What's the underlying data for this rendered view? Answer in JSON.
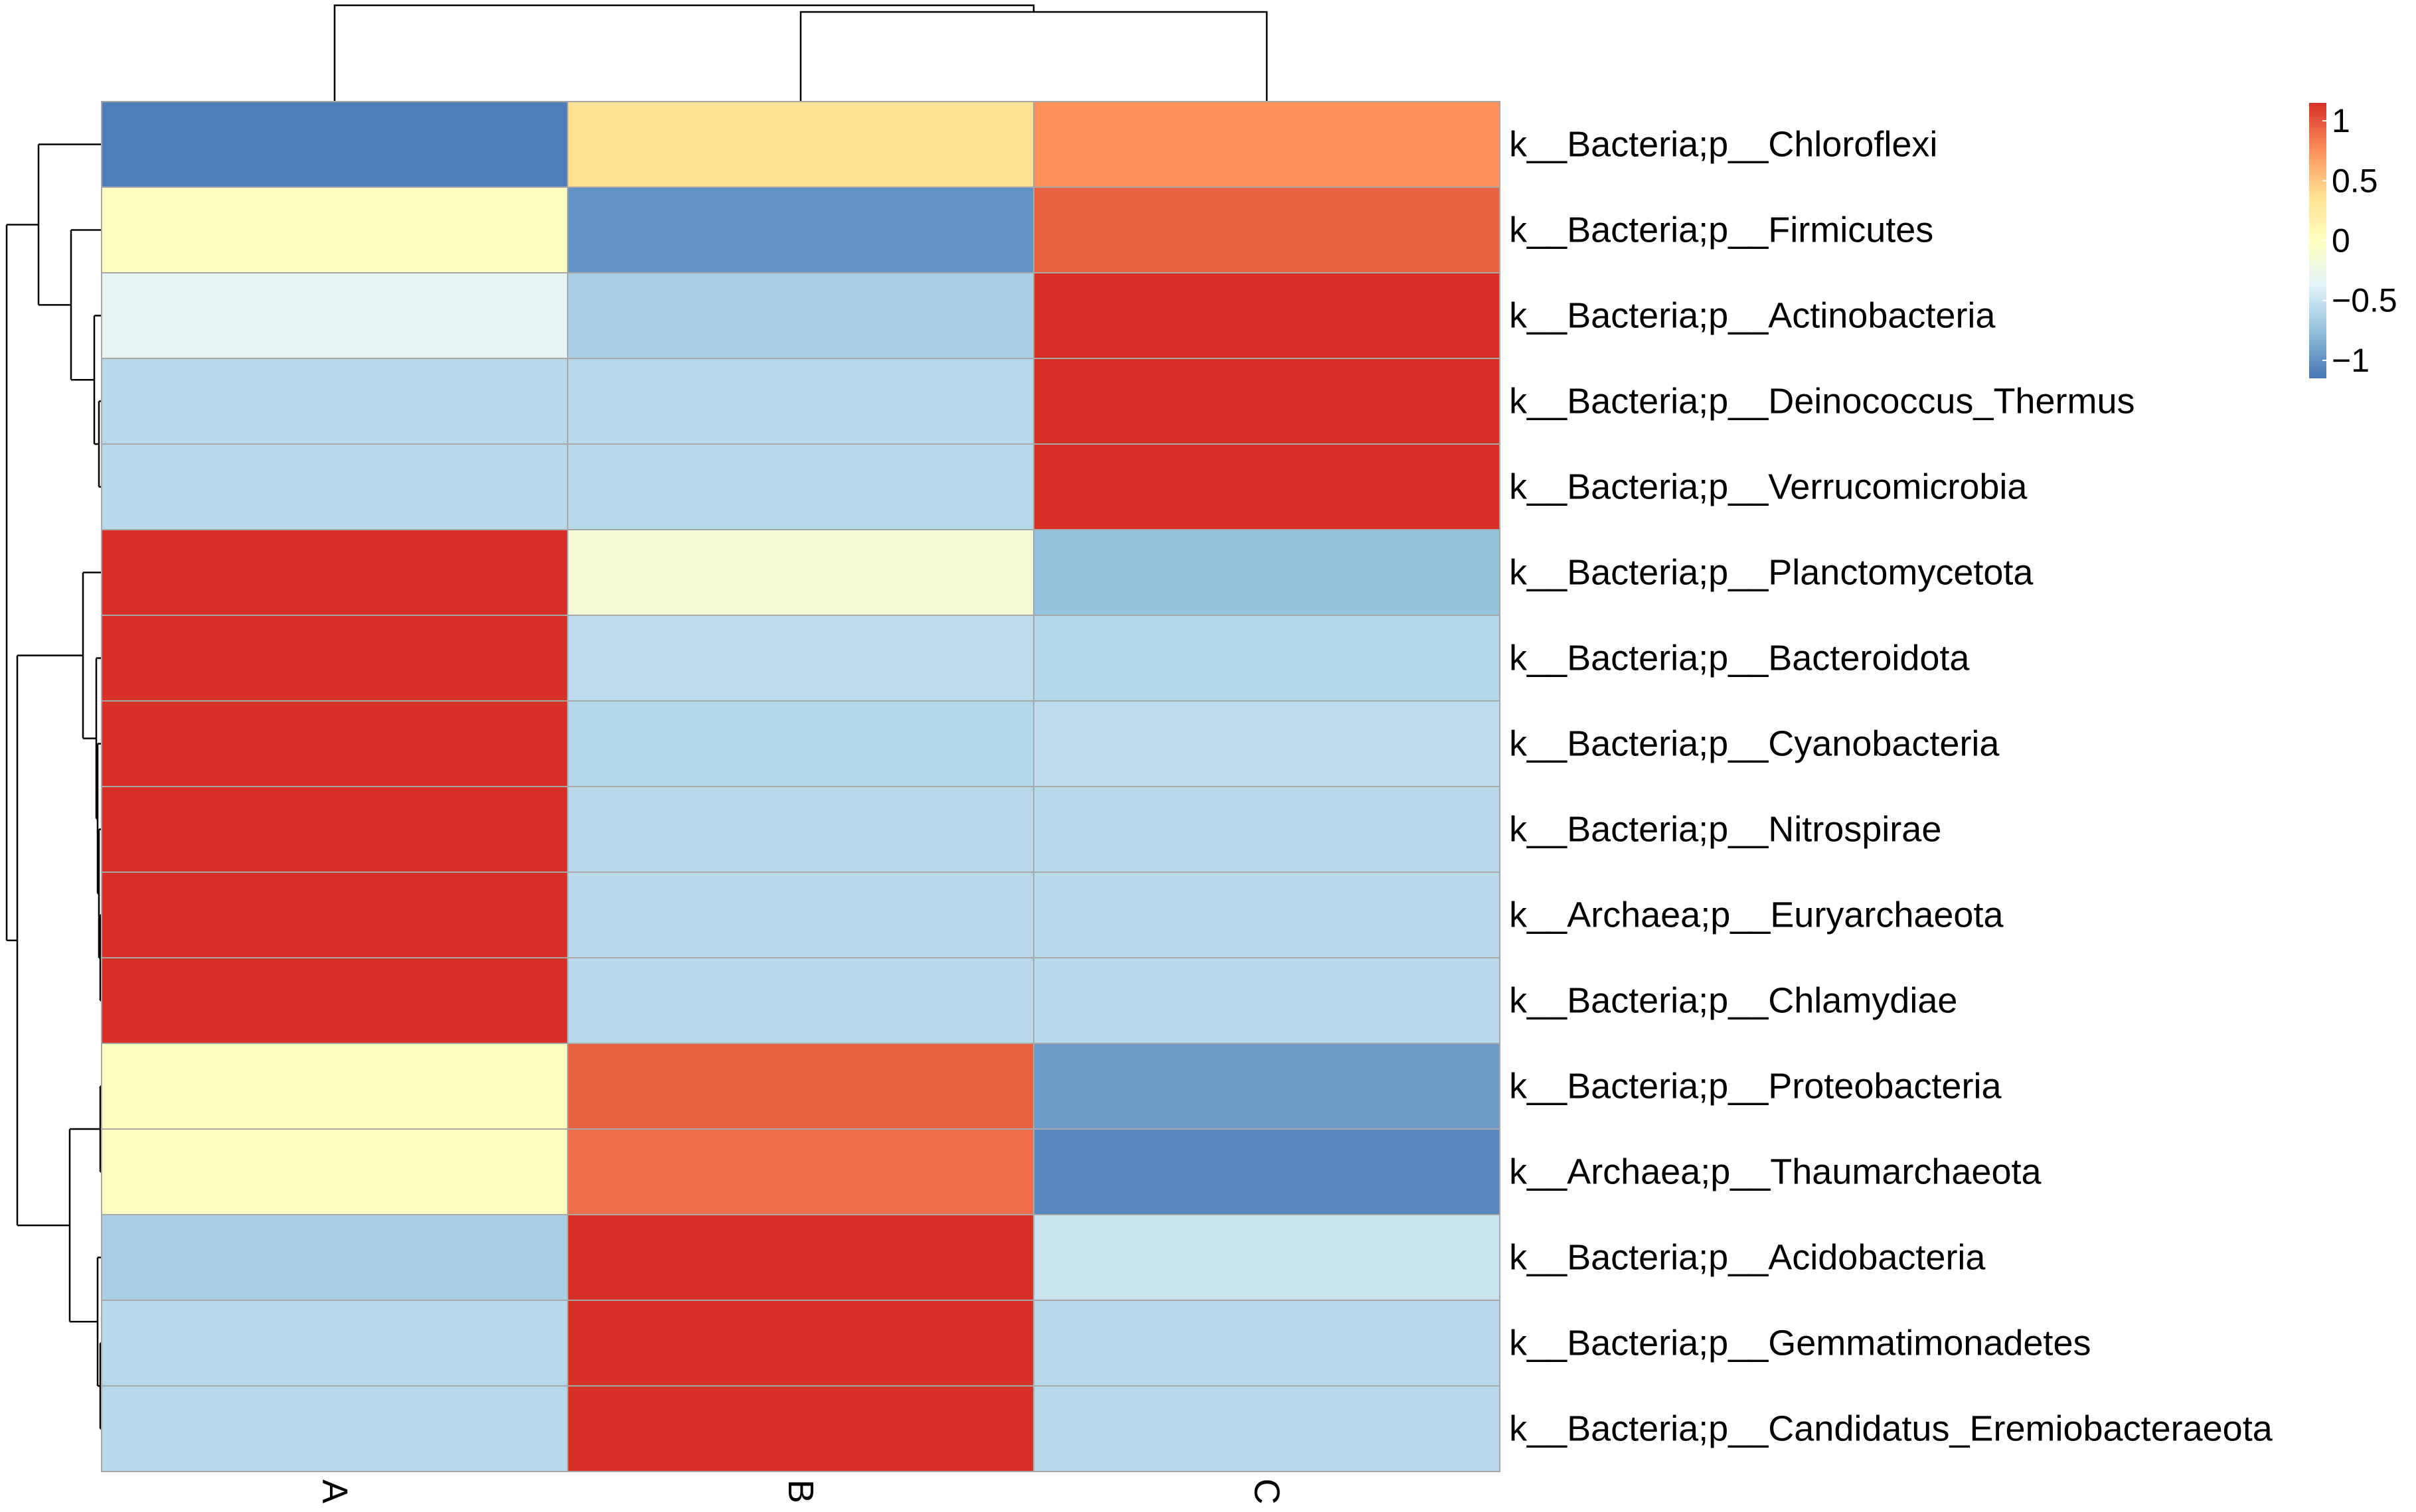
{
  "chart_data": {
    "type": "heatmap",
    "columns": [
      "A",
      "B",
      "C"
    ],
    "rows": [
      "k__Bacteria;p__Chloroflexi",
      "k__Bacteria;p__Firmicutes",
      "k__Bacteria;p__Actinobacteria",
      "k__Bacteria;p__Deinococcus_Thermus",
      "k__Bacteria;p__Verrucomicrobia",
      "k__Bacteria;p__Planctomycetota",
      "k__Bacteria;p__Bacteroidota",
      "k__Bacteria;p__Cyanobacteria",
      "k__Bacteria;p__Nitrospirae",
      "k__Archaea;p__Euryarchaeota",
      "k__Bacteria;p__Chlamydiae",
      "k__Bacteria;p__Proteobacteria",
      "k__Archaea;p__Thaumarchaeota",
      "k__Bacteria;p__Acidobacteria",
      "k__Bacteria;p__Gemmatimonadetes",
      "k__Bacteria;p__Candidatus_Eremiobacteraeota"
    ],
    "values": [
      [
        -1.1,
        0.35,
        0.75
      ],
      [
        0.0,
        -1.0,
        0.95
      ],
      [
        -0.35,
        -0.65,
        1.15
      ],
      [
        -0.58,
        -0.58,
        1.15
      ],
      [
        -0.58,
        -0.58,
        1.15
      ],
      [
        1.15,
        -0.15,
        -0.75
      ],
      [
        1.15,
        -0.55,
        -0.6
      ],
      [
        1.15,
        -0.6,
        -0.55
      ],
      [
        1.15,
        -0.58,
        -0.58
      ],
      [
        1.15,
        -0.58,
        -0.58
      ],
      [
        1.15,
        -0.58,
        -0.58
      ],
      [
        0.0,
        0.95,
        -0.95
      ],
      [
        0.0,
        0.9,
        -1.05
      ],
      [
        -0.65,
        1.15,
        -0.5
      ],
      [
        -0.58,
        1.15,
        -0.58
      ],
      [
        -0.58,
        1.15,
        -0.58
      ]
    ],
    "color_scale": {
      "min": -1.15,
      "max": 1.15,
      "colors": [
        "#4575b4",
        "#91bfdb",
        "#e0f3f8",
        "#ffffbf",
        "#fee090",
        "#fc8d59",
        "#d73027"
      ],
      "ticks": [
        1,
        0.5,
        0,
        -0.5,
        -1
      ],
      "tick_labels": [
        "1",
        "0.5",
        "0",
        "−0.5",
        "−1"
      ]
    },
    "legend": "top-right",
    "column_dendrogram": true,
    "row_dendrogram": true
  }
}
